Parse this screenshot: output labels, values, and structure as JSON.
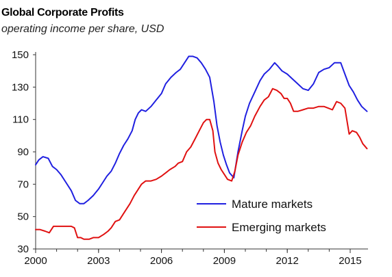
{
  "chart_data": {
    "type": "line",
    "title": "Global Corporate Profits",
    "subtitle": "operating income per share, USD",
    "xlabel": "",
    "ylabel": "",
    "xlim": [
      2000,
      2015.85
    ],
    "ylim": [
      30,
      150
    ],
    "y_ticks": [
      30,
      50,
      70,
      90,
      110,
      130,
      150
    ],
    "x_ticks": [
      2000,
      2003,
      2006,
      2009,
      2012,
      2015
    ],
    "grid": false,
    "legend_position": "bottom-right",
    "series": [
      {
        "name": "Mature markets",
        "color": "#1f1fe0",
        "x": [
          2000,
          2000.15,
          2000.35,
          2000.6,
          2000.8,
          2001.0,
          2001.2,
          2001.45,
          2001.7,
          2001.9,
          2002.1,
          2002.3,
          2002.5,
          2002.75,
          2003.0,
          2003.2,
          2003.4,
          2003.6,
          2003.8,
          2004.0,
          2004.2,
          2004.4,
          2004.6,
          2004.75,
          2004.9,
          2005.05,
          2005.25,
          2005.5,
          2005.75,
          2006.0,
          2006.2,
          2006.45,
          2006.7,
          2006.9,
          2007.1,
          2007.3,
          2007.5,
          2007.7,
          2007.9,
          2008.1,
          2008.3,
          2008.5,
          2008.65,
          2008.8,
          2008.95,
          2009.1,
          2009.25,
          2009.45,
          2009.65,
          2009.85,
          2010.0,
          2010.2,
          2010.45,
          2010.7,
          2010.9,
          2011.15,
          2011.4,
          2011.55,
          2011.75,
          2012.0,
          2012.25,
          2012.5,
          2012.75,
          2013.0,
          2013.25,
          2013.5,
          2013.75,
          2014.0,
          2014.25,
          2014.55,
          2014.75,
          2014.95,
          2015.15,
          2015.35,
          2015.55,
          2015.8
        ],
        "values": [
          82,
          85,
          87,
          86,
          81,
          79,
          76,
          71,
          66,
          60,
          58,
          58,
          60,
          63,
          67,
          71,
          75,
          78,
          83,
          89,
          94,
          98,
          103,
          110,
          114,
          116,
          115,
          118,
          122,
          126,
          132,
          136,
          139,
          141,
          145,
          149,
          149,
          148,
          145,
          141,
          136,
          121,
          106,
          96,
          88,
          82,
          77,
          74,
          90,
          103,
          112,
          120,
          127,
          134,
          138,
          141,
          145,
          143,
          140,
          138,
          135,
          132,
          129,
          128,
          132,
          139,
          141,
          142,
          145,
          145,
          138,
          131,
          127,
          122,
          118,
          115
        ]
      },
      {
        "name": "Emerging markets",
        "color": "#e01010",
        "x": [
          2000,
          2000.2,
          2000.45,
          2000.65,
          2000.85,
          2001.1,
          2001.4,
          2001.7,
          2001.85,
          2002.0,
          2002.15,
          2002.3,
          2002.55,
          2002.75,
          2003.0,
          2003.25,
          2003.45,
          2003.6,
          2003.8,
          2004.0,
          2004.25,
          2004.5,
          2004.7,
          2004.9,
          2005.05,
          2005.25,
          2005.5,
          2005.75,
          2006.0,
          2006.2,
          2006.4,
          2006.65,
          2006.8,
          2007.0,
          2007.2,
          2007.4,
          2007.6,
          2007.8,
          2008.0,
          2008.15,
          2008.3,
          2008.45,
          2008.55,
          2008.7,
          2008.85,
          2009.0,
          2009.15,
          2009.35,
          2009.5,
          2009.65,
          2009.85,
          2010.05,
          2010.25,
          2010.45,
          2010.7,
          2010.9,
          2011.1,
          2011.3,
          2011.5,
          2011.7,
          2011.85,
          2012.0,
          2012.15,
          2012.3,
          2012.5,
          2012.75,
          2013.0,
          2013.25,
          2013.5,
          2013.75,
          2013.95,
          2014.15,
          2014.35,
          2014.55,
          2014.75,
          2014.95,
          2015.1,
          2015.3,
          2015.45,
          2015.6,
          2015.8
        ],
        "values": [
          42,
          42,
          41,
          40,
          44,
          44,
          44,
          44,
          43,
          37,
          37,
          36,
          36,
          37,
          37,
          39,
          41,
          43,
          47,
          48,
          53,
          58,
          63,
          67,
          70,
          72,
          72,
          73,
          75,
          77,
          79,
          81,
          83,
          84,
          90,
          93,
          98,
          103,
          108,
          110,
          110,
          103,
          90,
          83,
          79,
          76,
          73,
          72,
          78,
          88,
          96,
          102,
          106,
          112,
          118,
          122,
          124,
          129,
          128,
          126,
          123,
          123,
          120,
          115,
          115,
          116,
          117,
          117,
          118,
          118,
          117,
          116,
          121,
          120,
          117,
          101,
          103,
          102,
          99,
          95,
          92
        ]
      }
    ]
  }
}
